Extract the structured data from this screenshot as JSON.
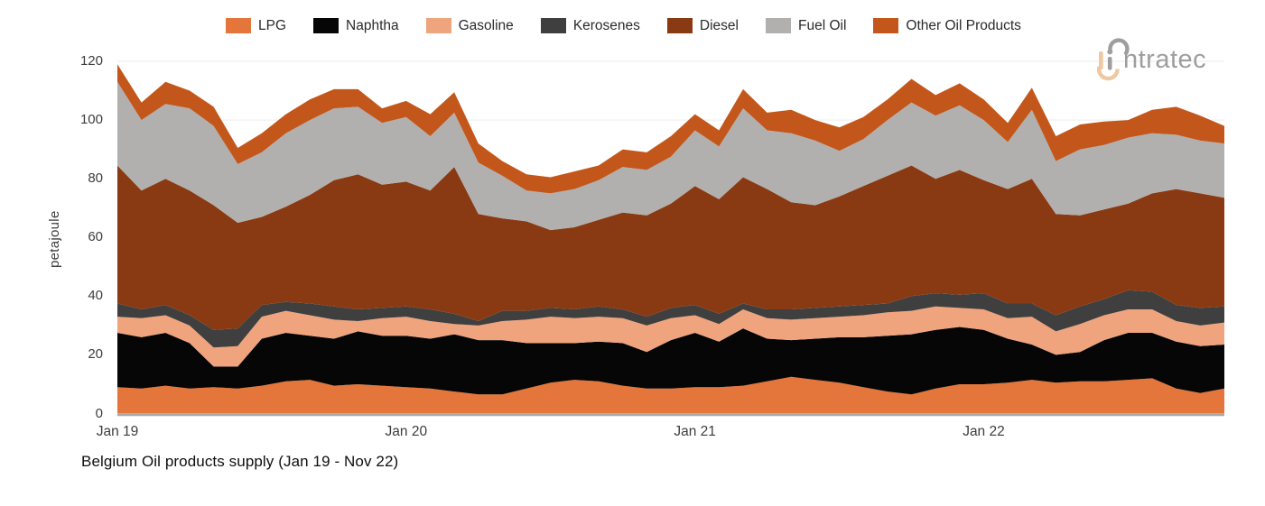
{
  "chart_data": {
    "type": "area",
    "stacked": true,
    "title": "Belgium Oil products supply (Jan 19 - Nov 22)",
    "ylabel": "petajoule",
    "ylim": [
      0,
      120
    ],
    "yticks": [
      0,
      20,
      40,
      60,
      80,
      100,
      120
    ],
    "grid": "faint horizontal gridlines at each y tick",
    "legend_position": "top",
    "x_unit": "month",
    "x_start": "Jan 2019",
    "x_end": "Nov 2022",
    "n_points": 47,
    "x_tick_positions": [
      0,
      12,
      24,
      36
    ],
    "x_tick_labels": [
      "Jan 19",
      "Jan 20",
      "Jan 21",
      "Jan 22"
    ],
    "series": [
      {
        "name": "LPG",
        "color": "#E4763B",
        "values": [
          9,
          8.5,
          9.5,
          8.5,
          9,
          8.5,
          9.5,
          11,
          11.5,
          9.5,
          10,
          9.5,
          9,
          8.5,
          7.5,
          6.5,
          6.5,
          8.5,
          10.5,
          11.5,
          11,
          9.5,
          8.5,
          8.5,
          9,
          9,
          9.5,
          11,
          12.5,
          11.5,
          10.5,
          9,
          7.5,
          6.5,
          8.5,
          10,
          10,
          10.5,
          11.5,
          10.5,
          11,
          11,
          11.5,
          12,
          8.5,
          7,
          8.5
        ]
      },
      {
        "name": "Naphtha",
        "color": "#060606",
        "values": [
          18.5,
          17.5,
          18,
          15.5,
          7,
          7.5,
          16,
          16.5,
          15,
          16,
          18,
          17,
          17.5,
          17,
          19.5,
          18.5,
          18.5,
          15.5,
          13.5,
          12.5,
          13.5,
          14.5,
          12.5,
          16.5,
          18.5,
          15.5,
          19.5,
          14.5,
          12.5,
          14,
          15.5,
          17,
          19,
          20.5,
          20,
          19.5,
          18.5,
          15,
          12,
          9.5,
          10,
          14,
          16,
          15.5,
          16,
          16,
          15
        ]
      },
      {
        "name": "Gasoline",
        "color": "#F0A47D",
        "values": [
          5.5,
          6.5,
          6,
          6,
          6.5,
          7,
          7.5,
          7.5,
          7,
          6.5,
          3.5,
          6,
          6.5,
          6,
          3.5,
          5,
          6.5,
          8,
          9,
          8.5,
          8.5,
          8.5,
          9,
          7.5,
          6,
          6,
          6.5,
          7,
          7,
          7,
          7,
          7.5,
          8,
          8,
          8,
          6.5,
          7,
          7,
          9.5,
          8,
          9.5,
          8.5,
          8,
          8,
          7,
          7,
          7.5
        ]
      },
      {
        "name": "Kerosenes",
        "color": "#3F3F3F",
        "values": [
          4.5,
          3,
          3.5,
          3.5,
          6,
          6,
          4,
          3,
          4,
          4.5,
          4,
          3.5,
          3.5,
          4,
          3.5,
          1.5,
          3.5,
          3,
          3,
          3,
          3.5,
          3,
          3,
          3.5,
          3.5,
          3.5,
          2,
          3,
          3.5,
          3.5,
          3.5,
          3.5,
          3,
          5,
          4.5,
          4.5,
          5.5,
          5,
          4.5,
          5.5,
          6,
          5.5,
          6.5,
          6,
          5.5,
          6,
          5.5
        ]
      },
      {
        "name": "Diesel",
        "color": "#8A3A12",
        "values": [
          47,
          40.5,
          43,
          42.5,
          42.5,
          36,
          30,
          32.5,
          37,
          43,
          46,
          42,
          42.5,
          40.5,
          50,
          36.5,
          31.5,
          30.5,
          26.5,
          28,
          29.5,
          33,
          34.5,
          35.5,
          40.5,
          39,
          43,
          41,
          36.5,
          35,
          37.5,
          40.5,
          43.5,
          44.5,
          39,
          42.5,
          38.5,
          39,
          42.5,
          34.5,
          31,
          30.5,
          29.5,
          33.5,
          39.5,
          39,
          37
        ]
      },
      {
        "name": "Fuel Oil",
        "color": "#B1B0AF",
        "values": [
          28.5,
          24,
          25.5,
          28,
          27,
          20,
          22,
          25,
          25.5,
          24.5,
          23,
          21,
          22,
          18.5,
          18.5,
          17.5,
          14.5,
          10.5,
          12.5,
          13,
          13.5,
          15.5,
          15.5,
          16,
          19,
          18,
          23.5,
          20,
          23.5,
          22,
          15.5,
          16,
          19,
          21.5,
          21.5,
          22,
          20.5,
          16,
          23.5,
          18,
          22.5,
          22,
          22.5,
          20.5,
          18.5,
          18,
          18.5
        ]
      },
      {
        "name": "Other Oil Products",
        "color": "#C3571B",
        "values": [
          6,
          6,
          7.5,
          6,
          6.5,
          5.5,
          6.5,
          6.5,
          7,
          6.5,
          6,
          5,
          5.5,
          7.5,
          7,
          6.5,
          5,
          5.5,
          5.5,
          6,
          5,
          6,
          6,
          7,
          5.5,
          5.5,
          6.5,
          6,
          8,
          7,
          8,
          7.5,
          7,
          8,
          7,
          7.5,
          7,
          6.5,
          7.5,
          8.5,
          8.5,
          8,
          6,
          8,
          9.5,
          8.5,
          6
        ]
      }
    ]
  },
  "style": {
    "axis_text_color": "#3d3d3d",
    "gridline_color": "#f2f2f2",
    "baseline_color": "#a8a8a8",
    "logo_gray": "#9e9e9e",
    "logo_peach": "#efc7a0"
  },
  "branding": {
    "logo_visible_text": "intratec",
    "logo_text_after_mark": "ntratec"
  }
}
